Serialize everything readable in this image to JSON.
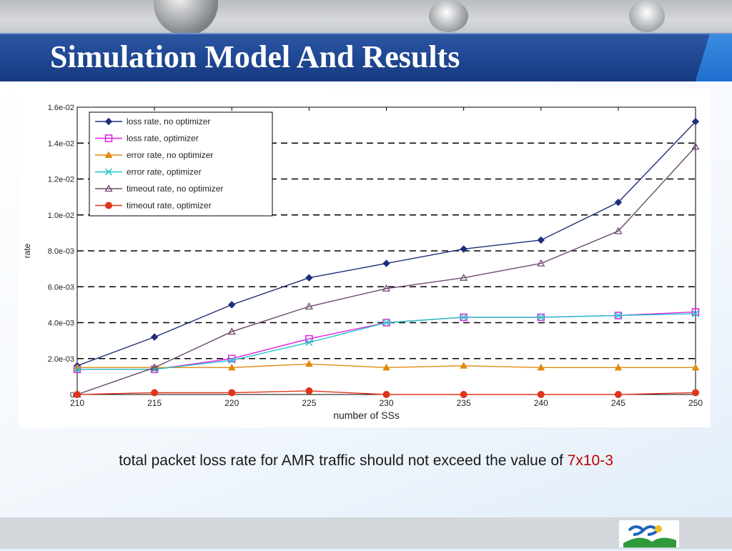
{
  "slide": {
    "title": "Simulation Model And Results",
    "caption_text": "total packet loss rate for AMR traffic should not exceed the value of ",
    "caption_highlight": "7x10-3",
    "caption_highlight_color": "#c00000"
  },
  "chart_data": {
    "type": "line",
    "title": "",
    "xlabel": "number of SSs",
    "ylabel": "rate",
    "x": [
      210,
      215,
      220,
      225,
      230,
      235,
      240,
      245,
      250
    ],
    "xlim": [
      210,
      250
    ],
    "ylim": [
      0,
      0.016
    ],
    "xticks": [
      "210",
      "215",
      "220",
      "225",
      "230",
      "235",
      "240",
      "245",
      "250"
    ],
    "yticks": [
      {
        "value": 0,
        "label": "0"
      },
      {
        "value": 0.002,
        "label": "2.0e-03"
      },
      {
        "value": 0.004,
        "label": "4.0e-03"
      },
      {
        "value": 0.006,
        "label": "6.0e-03"
      },
      {
        "value": 0.008,
        "label": "8.0e-03"
      },
      {
        "value": 0.01,
        "label": "1.0e-02"
      },
      {
        "value": 0.012,
        "label": "1.2e-02"
      },
      {
        "value": 0.014,
        "label": "1.4e-02"
      },
      {
        "value": 0.016,
        "label": "1.6e-02"
      }
    ],
    "grid": "horizontal dashed",
    "legend_position": "top-left",
    "series": [
      {
        "name": "loss rate, no optimizer",
        "color": "#1f2e7a",
        "marker": "diamond",
        "values": [
          0.0016,
          0.0032,
          0.005,
          0.0065,
          0.0073,
          0.0081,
          0.0086,
          0.0107,
          0.0152
        ]
      },
      {
        "name": "loss rate, optimizer",
        "color": "#e020e0",
        "marker": "square",
        "values": [
          0.0014,
          0.0014,
          0.002,
          0.0031,
          0.004,
          0.0043,
          0.0043,
          0.0044,
          0.0046
        ]
      },
      {
        "name": "error rate, no optimizer",
        "color": "#e08a10",
        "marker": "triangle",
        "values": [
          0.0015,
          0.0015,
          0.0015,
          0.0017,
          0.0015,
          0.0016,
          0.0015,
          0.0015,
          0.0015
        ]
      },
      {
        "name": "error rate, optimizer",
        "color": "#20c4c8",
        "marker": "x",
        "values": [
          0.0014,
          0.0014,
          0.0019,
          0.0029,
          0.004,
          0.0043,
          0.0043,
          0.0044,
          0.0045
        ]
      },
      {
        "name": "timeout rate, no optimizer",
        "color": "#6b4a6e",
        "marker": "triangle-open",
        "values": [
          0.0,
          0.0015,
          0.0035,
          0.0049,
          0.0059,
          0.0065,
          0.0073,
          0.0091,
          0.0138
        ]
      },
      {
        "name": "timeout rate, optimizer",
        "color": "#e0341c",
        "marker": "circle",
        "values": [
          0.0,
          0.0001,
          0.0001,
          0.0002,
          0.0,
          0.0,
          0.0,
          0.0,
          0.0001
        ]
      }
    ]
  }
}
